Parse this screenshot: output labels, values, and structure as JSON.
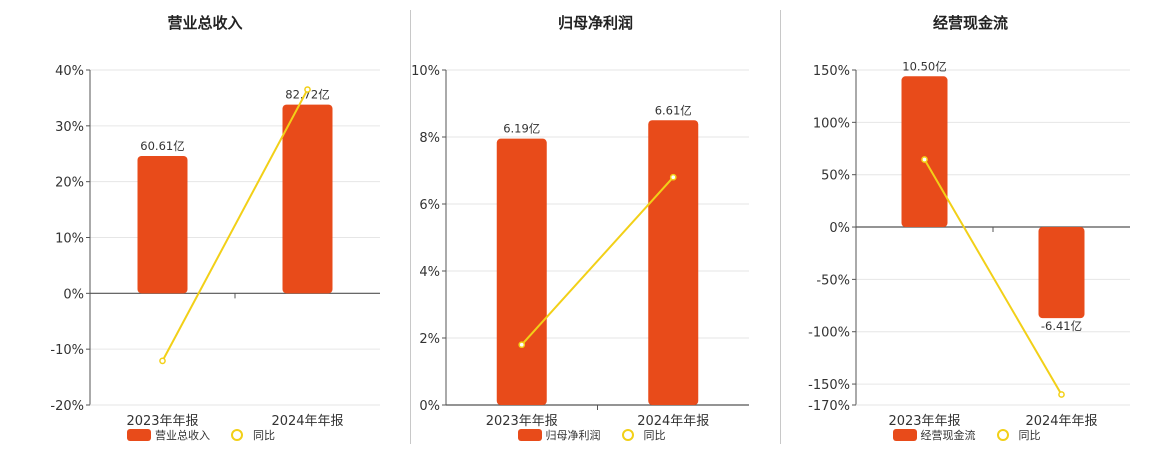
{
  "colors": {
    "bar": "#E84B1A",
    "line": "#F2D018",
    "grid": "#e6e6e6",
    "axis": "#555555"
  },
  "chart_data": [
    {
      "type": "bar",
      "title": "营业总收入",
      "categories": [
        "2023年年报",
        "2024年年报"
      ],
      "series": [
        {
          "name": "营业总收入",
          "type": "bar",
          "values": [
            24.6,
            33.8
          ],
          "labels": [
            "60.61亿",
            "82.72亿"
          ]
        },
        {
          "name": "同比",
          "type": "line",
          "values": [
            -12.1,
            36.5
          ]
        }
      ],
      "yticks": [
        "40%",
        "30%",
        "20%",
        "10%",
        "0%",
        "-10%",
        "-20%"
      ],
      "ylim": [
        -20,
        40
      ],
      "grid": true,
      "legend": "bottom"
    },
    {
      "type": "bar",
      "title": "归母净利润",
      "categories": [
        "2023年年报",
        "2024年年报"
      ],
      "series": [
        {
          "name": "归母净利润",
          "type": "bar",
          "values": [
            7.95,
            8.5
          ],
          "labels": [
            "6.19亿",
            "6.61亿"
          ]
        },
        {
          "name": "同比",
          "type": "line",
          "values": [
            1.8,
            6.8
          ]
        }
      ],
      "yticks": [
        "10%",
        "8%",
        "6%",
        "4%",
        "2%",
        "0%"
      ],
      "ylim": [
        0,
        10
      ],
      "grid": true,
      "legend": "bottom"
    },
    {
      "type": "bar",
      "title": "经营现金流",
      "categories": [
        "2023年年报",
        "2024年年报"
      ],
      "series": [
        {
          "name": "经营现金流",
          "type": "bar",
          "values": [
            144,
            -87
          ],
          "labels": [
            "10.50亿",
            "-6.41亿"
          ]
        },
        {
          "name": "同比",
          "type": "line",
          "values": [
            64.5,
            -160
          ]
        }
      ],
      "yticks": [
        "150%",
        "100%",
        "50%",
        "0%",
        "-50%",
        "-100%",
        "-150%",
        "-170%"
      ],
      "ylim": [
        -170,
        150
      ],
      "grid": true,
      "legend": "bottom"
    }
  ]
}
